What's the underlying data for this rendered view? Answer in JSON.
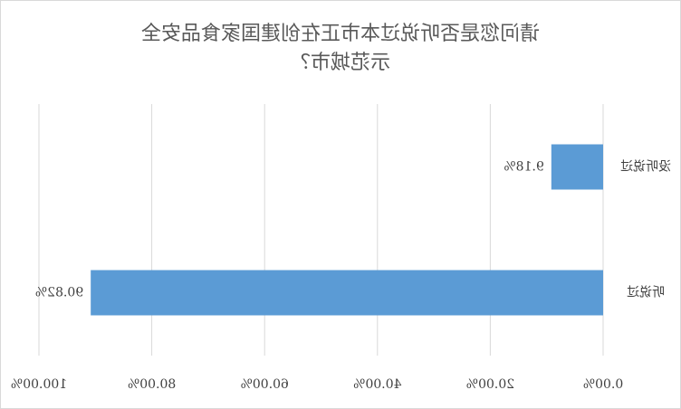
{
  "chart_data": {
    "type": "barh",
    "title": [
      "请问您是否听说过本市正在创建国家食品安全",
      "示范城市？"
    ],
    "categories": [
      "没听说过",
      "听说过"
    ],
    "values": [
      9.18,
      90.82
    ],
    "value_labels": [
      "9.18%",
      "90.82%"
    ],
    "color": "#5b9bd5",
    "xlim": [
      0,
      100
    ],
    "xticks": [
      {
        "value": 0,
        "label": "0.00%"
      },
      {
        "value": 20,
        "label": "20.00%"
      },
      {
        "value": 40,
        "label": "40.00%"
      },
      {
        "value": 60,
        "label": "60.00%"
      },
      {
        "value": 80,
        "label": "80.00%"
      },
      {
        "value": 100,
        "label": "100.00%"
      }
    ],
    "grid": true,
    "mirrored": true
  }
}
